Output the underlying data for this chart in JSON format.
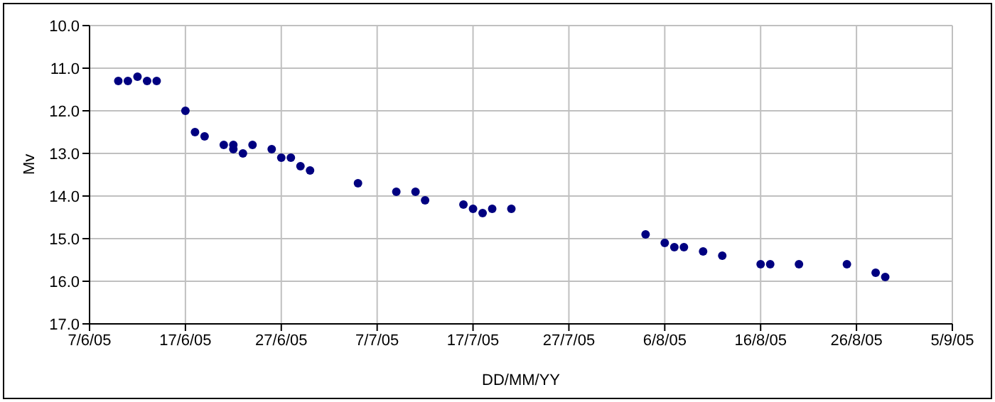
{
  "chart_data": {
    "type": "scatter",
    "xlabel": "DD/MM/YY",
    "ylabel": "Mv",
    "x": [
      "--06-10",
      "--06-11",
      "--06-12",
      "--06-13",
      "--06-14",
      "--06-17",
      "--06-18",
      "--06-19",
      "--06-21",
      "--06-22",
      "--06-22",
      "--06-23",
      "--06-24",
      "--06-26",
      "--06-27",
      "--06-28",
      "--06-29",
      "--06-30",
      "--07-05",
      "--07-09",
      "--07-11",
      "--07-12",
      "--07-16",
      "--07-17",
      "--07-18",
      "--07-19",
      "--07-21",
      "--08-04",
      "--08-06",
      "--08-07",
      "--08-08",
      "--08-10",
      "--08-12",
      "--08-16",
      "--08-17",
      "--08-20",
      "--08-25",
      "--08-28",
      "--08-29"
    ],
    "series": [
      {
        "color": "#000080",
        "values": [
          11.3,
          11.3,
          11.2,
          11.3,
          11.3,
          12.0,
          12.5,
          12.6,
          12.8,
          12.8,
          12.9,
          13.0,
          12.8,
          12.9,
          13.1,
          13.1,
          13.3,
          13.4,
          13.7,
          13.9,
          13.9,
          14.1,
          14.2,
          14.3,
          14.4,
          14.3,
          14.3,
          14.9,
          15.1,
          15.2,
          15.2,
          15.3,
          15.4,
          15.6,
          15.6,
          15.6,
          15.6,
          15.8,
          15.9
        ]
      }
    ],
    "xlim": [
      "--06-07",
      "--09-05"
    ],
    "xticks": [
      {
        "value": "--06-07",
        "label": "7/6/05"
      },
      {
        "value": "--06-17",
        "label": "17/6/05"
      },
      {
        "value": "--06-27",
        "label": "27/6/05"
      },
      {
        "value": "--07-07",
        "label": "7/7/05"
      },
      {
        "value": "--07-17",
        "label": "17/7/05"
      },
      {
        "value": "--07-27",
        "label": "27/7/05"
      },
      {
        "value": "--08-06",
        "label": "6/8/05"
      },
      {
        "value": "--08-16",
        "label": "16/8/05"
      },
      {
        "value": "--08-26",
        "label": "26/8/05"
      },
      {
        "value": "--09-05",
        "label": "5/9/05"
      }
    ],
    "ylim": [
      17,
      10
    ],
    "yticks": [
      {
        "value": 10,
        "label": "10.0"
      },
      {
        "value": 11,
        "label": "11.0"
      },
      {
        "value": 12,
        "label": "12.0"
      },
      {
        "value": 13,
        "label": "13.0"
      },
      {
        "value": 14,
        "label": "14.0"
      },
      {
        "value": 15,
        "label": "15.0"
      },
      {
        "value": 16,
        "label": "16.0"
      },
      {
        "value": 17,
        "label": "17.0"
      }
    ],
    "grid": true,
    "marker": "circle"
  }
}
